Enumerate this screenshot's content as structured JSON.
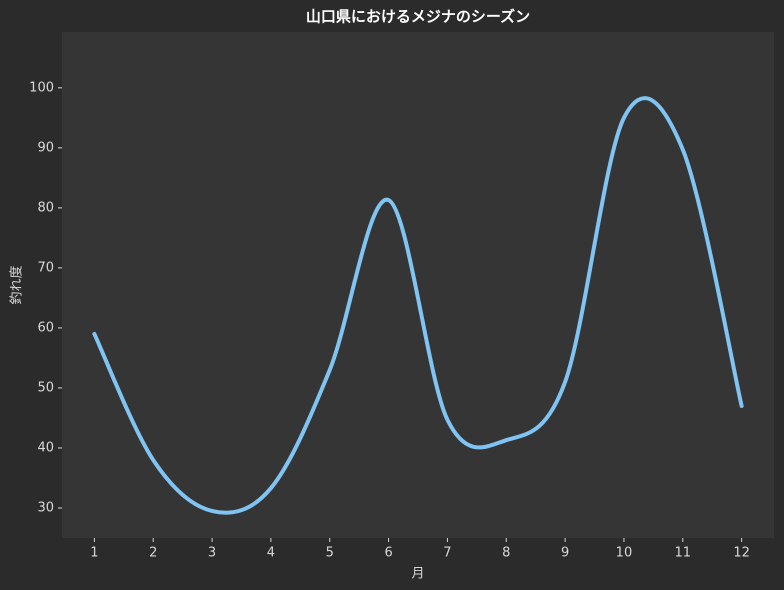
{
  "chart_data": {
    "type": "line",
    "title": "山口県におけるメジナのシーズン",
    "x_label": "月",
    "y_label": "釣れ度",
    "x": [
      1,
      2,
      3,
      4,
      5,
      6,
      7,
      8,
      9,
      10,
      11,
      12
    ],
    "series": [
      {
        "name": "釣れ度",
        "color": "#7fc4f2",
        "values": [
          59,
          38,
          29.5,
          33.3,
          53,
          81.3,
          44.7,
          41.3,
          51,
          95,
          89.7,
          47
        ]
      }
    ],
    "xlim": [
      0.45,
      12.55
    ],
    "ylim": [
      25,
      109.3
    ],
    "xticks": [
      1,
      2,
      3,
      4,
      5,
      6,
      7,
      8,
      9,
      10,
      11,
      12
    ],
    "yticks": [
      30,
      40,
      50,
      60,
      70,
      80,
      90,
      100
    ],
    "grid": false
  }
}
